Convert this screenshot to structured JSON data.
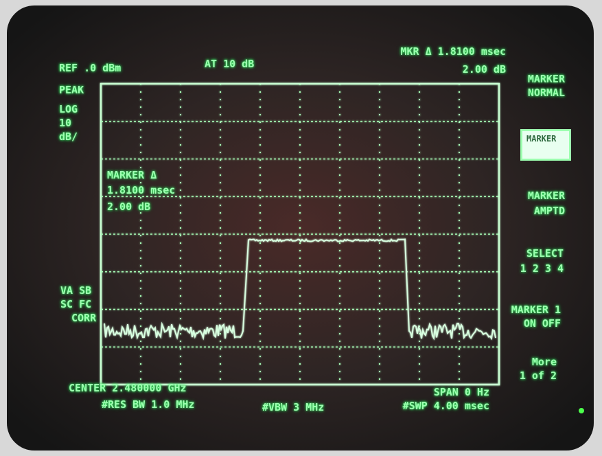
{
  "header": {
    "ref": "REF .0 dBm",
    "atten": "AT 10 dB",
    "marker_readout": [
      "MKR Δ 1.8100 msec",
      "2.00 dB"
    ]
  },
  "scale": [
    "PEAK",
    "LOG",
    "10",
    "dB/"
  ],
  "status": [
    "VA SB",
    "SC FC",
    "CORR"
  ],
  "marker_annotation": [
    "MARKER Δ",
    "1.8100 msec",
    "2.00 dB"
  ],
  "softkeys": [
    [
      "MARKER",
      "NORMAL"
    ],
    [
      "MARKER"
    ],
    [
      "MARKER",
      "AMPTD"
    ],
    [
      "SELECT",
      "1 2 3 4"
    ],
    [
      "MARKER 1",
      "ON OFF"
    ],
    [
      "More",
      "1 of 2"
    ]
  ],
  "footer": {
    "center": "CENTER 2.480000 GHz",
    "res_bw": "#RES BW 1.0 MHz",
    "vbw": "#VBW 3 MHz",
    "span": "SPAN 0 Hz",
    "sweep": "#SWP 4.00 msec"
  }
}
